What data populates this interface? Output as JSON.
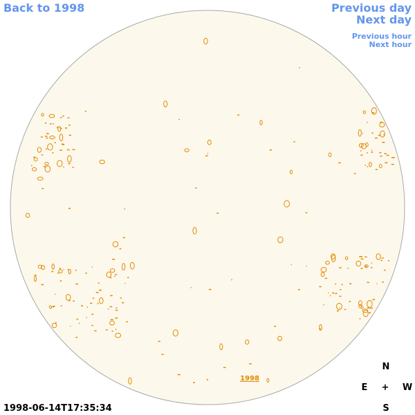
{
  "nav": {
    "back_year": "Back to 1998",
    "previous_day": "Previous day",
    "next_day": "Next day",
    "previous_hour": "Previous hour",
    "next_hour": "Next hour"
  },
  "disk_link": "1998",
  "timestamp": "1998-06-14T17:35:34",
  "compass": {
    "north": "N",
    "east": "E",
    "center": "+",
    "west": "W",
    "south": "S"
  }
}
